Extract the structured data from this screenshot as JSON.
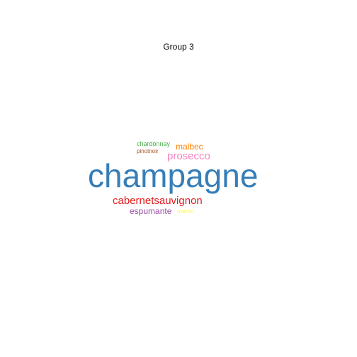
{
  "chart_data": {
    "type": "wordcloud",
    "title": "Group 3",
    "words": [
      {
        "text": "champagne",
        "weight": 100,
        "color": "#377EB8"
      },
      {
        "text": "cabernetsauvignon",
        "weight": 34,
        "color": "#E41A1C"
      },
      {
        "text": "prosecco",
        "weight": 32,
        "color": "#F781BF"
      },
      {
        "text": "espumante",
        "weight": 26,
        "color": "#984EA3"
      },
      {
        "text": "malbec",
        "weight": 26,
        "color": "#FF7F00"
      },
      {
        "text": "chardonnay",
        "weight": 18,
        "color": "#4DAF4A"
      },
      {
        "text": "pinotnoir",
        "weight": 15,
        "color": "#A65628"
      },
      {
        "text": "merlot",
        "weight": 14,
        "color": "#FFFF33"
      }
    ]
  }
}
